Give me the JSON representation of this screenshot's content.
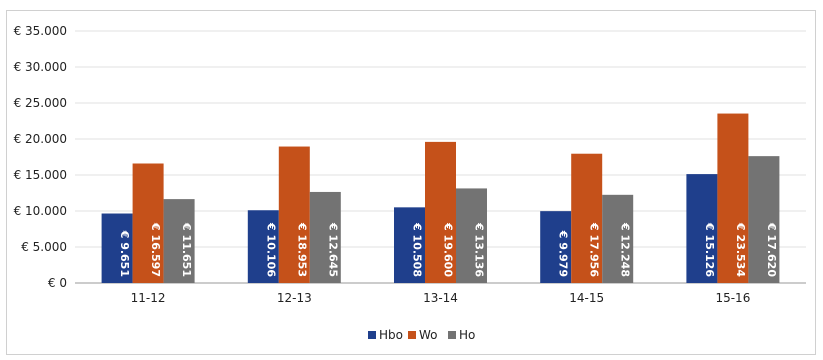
{
  "chart_data": {
    "type": "bar",
    "categories": [
      "11-12",
      "12-13",
      "13-14",
      "14-15",
      "15-16"
    ],
    "series": [
      {
        "name": "Hbo",
        "color": "#1f3f8c",
        "values": [
          9651,
          10106,
          10508,
          9979,
          15126
        ],
        "labels": [
          "€ 9.651",
          "€ 10.106",
          "€ 10.508",
          "€ 9.979",
          "€ 15.126"
        ]
      },
      {
        "name": "Wo",
        "color": "#c5511a",
        "values": [
          16597,
          18953,
          19600,
          17956,
          23534
        ],
        "labels": [
          "€ 16.597",
          "€ 18.953",
          "€ 19.600",
          "€ 17.956",
          "€ 23.534"
        ]
      },
      {
        "name": "Ho",
        "color": "#737373",
        "values": [
          11651,
          12645,
          13136,
          12248,
          17620
        ],
        "labels": [
          "€ 11.651",
          "€ 12.645",
          "€ 13.136",
          "€ 12.248",
          "€ 17.620"
        ]
      }
    ],
    "yticks": [
      0,
      5000,
      10000,
      15000,
      20000,
      25000,
      30000,
      35000
    ],
    "ytick_labels": [
      "€ 0",
      "€ 5.000",
      "€ 10.000",
      "€ 15.000",
      "€ 20.000",
      "€ 25.000",
      "€ 30.000",
      "€ 35.000"
    ],
    "ylim": [
      0,
      35000
    ],
    "grid": true,
    "legend_position": "bottom-center",
    "title": "",
    "xlabel": "",
    "ylabel": ""
  }
}
